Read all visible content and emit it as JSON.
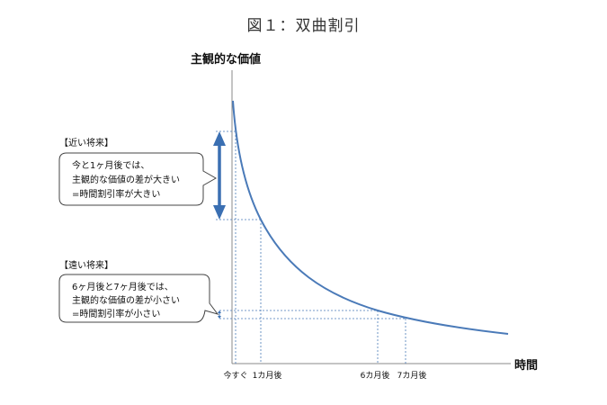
{
  "title": "図１：双曲割引",
  "y_axis_label": "主観的な価値",
  "x_axis_label": "時間",
  "x_ticks": [
    "今すぐ",
    "1カ月後",
    "6カ月後",
    "7カ月後"
  ],
  "near_future": {
    "heading": "【近い将来】",
    "lines": [
      "今と1ヶ月後では、",
      "主観的な価値の差が大きい",
      "=時間割引率が大きい"
    ]
  },
  "far_future": {
    "heading": "【遠い将来】",
    "lines": [
      "6ヶ月後と7ヶ月後では、",
      "主観的な価値の差が小さい",
      "=時間割引率が小さい"
    ]
  },
  "colors": {
    "curve": "#4a7ab8",
    "axis": "#888888",
    "arrow": "#3a6fb2"
  }
}
